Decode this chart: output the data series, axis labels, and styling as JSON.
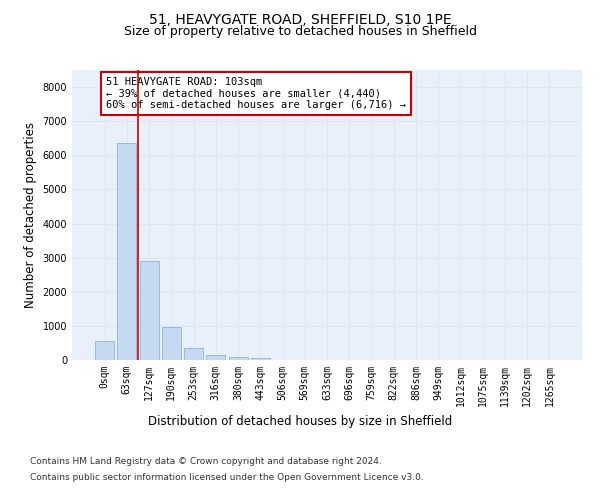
{
  "title_line1": "51, HEAVYGATE ROAD, SHEFFIELD, S10 1PE",
  "title_line2": "Size of property relative to detached houses in Sheffield",
  "xlabel": "Distribution of detached houses by size in Sheffield",
  "ylabel": "Number of detached properties",
  "bar_labels": [
    "0sqm",
    "63sqm",
    "127sqm",
    "190sqm",
    "253sqm",
    "316sqm",
    "380sqm",
    "443sqm",
    "506sqm",
    "569sqm",
    "633sqm",
    "696sqm",
    "759sqm",
    "822sqm",
    "886sqm",
    "949sqm",
    "1012sqm",
    "1075sqm",
    "1139sqm",
    "1202sqm",
    "1265sqm"
  ],
  "bar_heights": [
    560,
    6350,
    2900,
    980,
    350,
    160,
    90,
    55,
    0,
    0,
    0,
    0,
    0,
    0,
    0,
    0,
    0,
    0,
    0,
    0,
    0
  ],
  "bar_color": "#c5d9f1",
  "bar_edge_color": "#8db4e2",
  "vline_x": 1.5,
  "annotation_text": "51 HEAVYGATE ROAD: 103sqm\n← 39% of detached houses are smaller (4,440)\n60% of semi-detached houses are larger (6,716) →",
  "annotation_box_color": "#ffffff",
  "annotation_border_color": "#cc0000",
  "vline_color": "#cc0000",
  "ylim": [
    0,
    8500
  ],
  "yticks": [
    0,
    1000,
    2000,
    3000,
    4000,
    5000,
    6000,
    7000,
    8000
  ],
  "grid_color": "#dce6f1",
  "background_color": "#e8f0fb",
  "footer_line1": "Contains HM Land Registry data © Crown copyright and database right 2024.",
  "footer_line2": "Contains public sector information licensed under the Open Government Licence v3.0.",
  "title_fontsize": 10,
  "subtitle_fontsize": 9,
  "axis_label_fontsize": 8.5,
  "tick_fontsize": 7,
  "annotation_fontsize": 7.5,
  "footer_fontsize": 6.5
}
